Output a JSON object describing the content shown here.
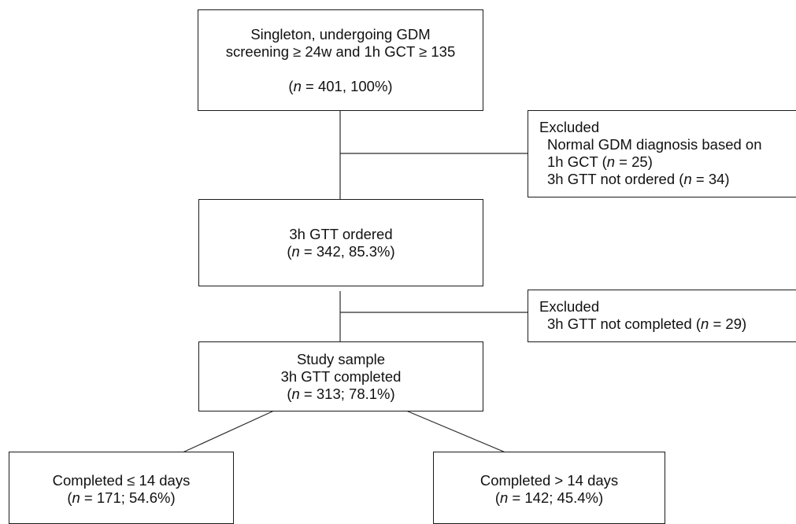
{
  "flow": {
    "top": {
      "line1": "Singleton, undergoing GDM",
      "line2": "screening ≥ 24w and 1h GCT ≥ 135",
      "count_pre": "(",
      "count_var": "n",
      "count_post": " = 401, 100%)"
    },
    "exclusion1": {
      "heading": "Excluded",
      "line1": "Normal GDM diagnosis based on",
      "line2_pre": "1h GCT (",
      "line2_var": "n",
      "line2_post": " = 25)",
      "line3_pre": "3h GTT not ordered (",
      "line3_var": "n",
      "line3_post": " = 34)"
    },
    "ordered": {
      "line1": "3h GTT ordered",
      "count_pre": "(",
      "count_var": "n",
      "count_post": " = 342, 85.3%)"
    },
    "exclusion2": {
      "heading": "Excluded",
      "line1_pre": "3h GTT not completed (",
      "line1_var": "n",
      "line1_post": " = 29)"
    },
    "sample": {
      "line1": "Study sample",
      "line2": "3h GTT completed",
      "count_pre": "(",
      "count_var": "n",
      "count_post": " = 313; 78.1%)"
    },
    "left_leaf": {
      "line1": "Completed ≤ 14 days",
      "count_pre": "(",
      "count_var": "n",
      "count_post": " = 171; 54.6%)"
    },
    "right_leaf": {
      "line1": "Completed > 14 days",
      "count_pre": "(",
      "count_var": "n",
      "count_post": " = 142; 45.4%)"
    }
  }
}
